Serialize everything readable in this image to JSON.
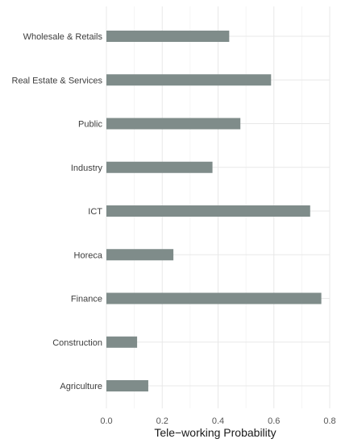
{
  "chart_data": {
    "type": "bar",
    "orientation": "horizontal",
    "categories": [
      "Wholesale & Retails",
      "Real Estate & Services",
      "Public",
      "Industry",
      "ICT",
      "Horeca",
      "Finance",
      "Construction",
      "Agriculture"
    ],
    "values": [
      0.44,
      0.59,
      0.48,
      0.38,
      0.73,
      0.24,
      0.77,
      0.11,
      0.15
    ],
    "xlabel": "Tele−working Probability",
    "ylabel": "",
    "xlim": [
      0,
      0.8
    ],
    "xticks": [
      "0.0",
      "0.2",
      "0.4",
      "0.6",
      "0.8"
    ],
    "grid": true,
    "colors": {
      "bar": "#7f8c8a",
      "grid": "#e8e8e8",
      "background": "#ffffff"
    }
  }
}
